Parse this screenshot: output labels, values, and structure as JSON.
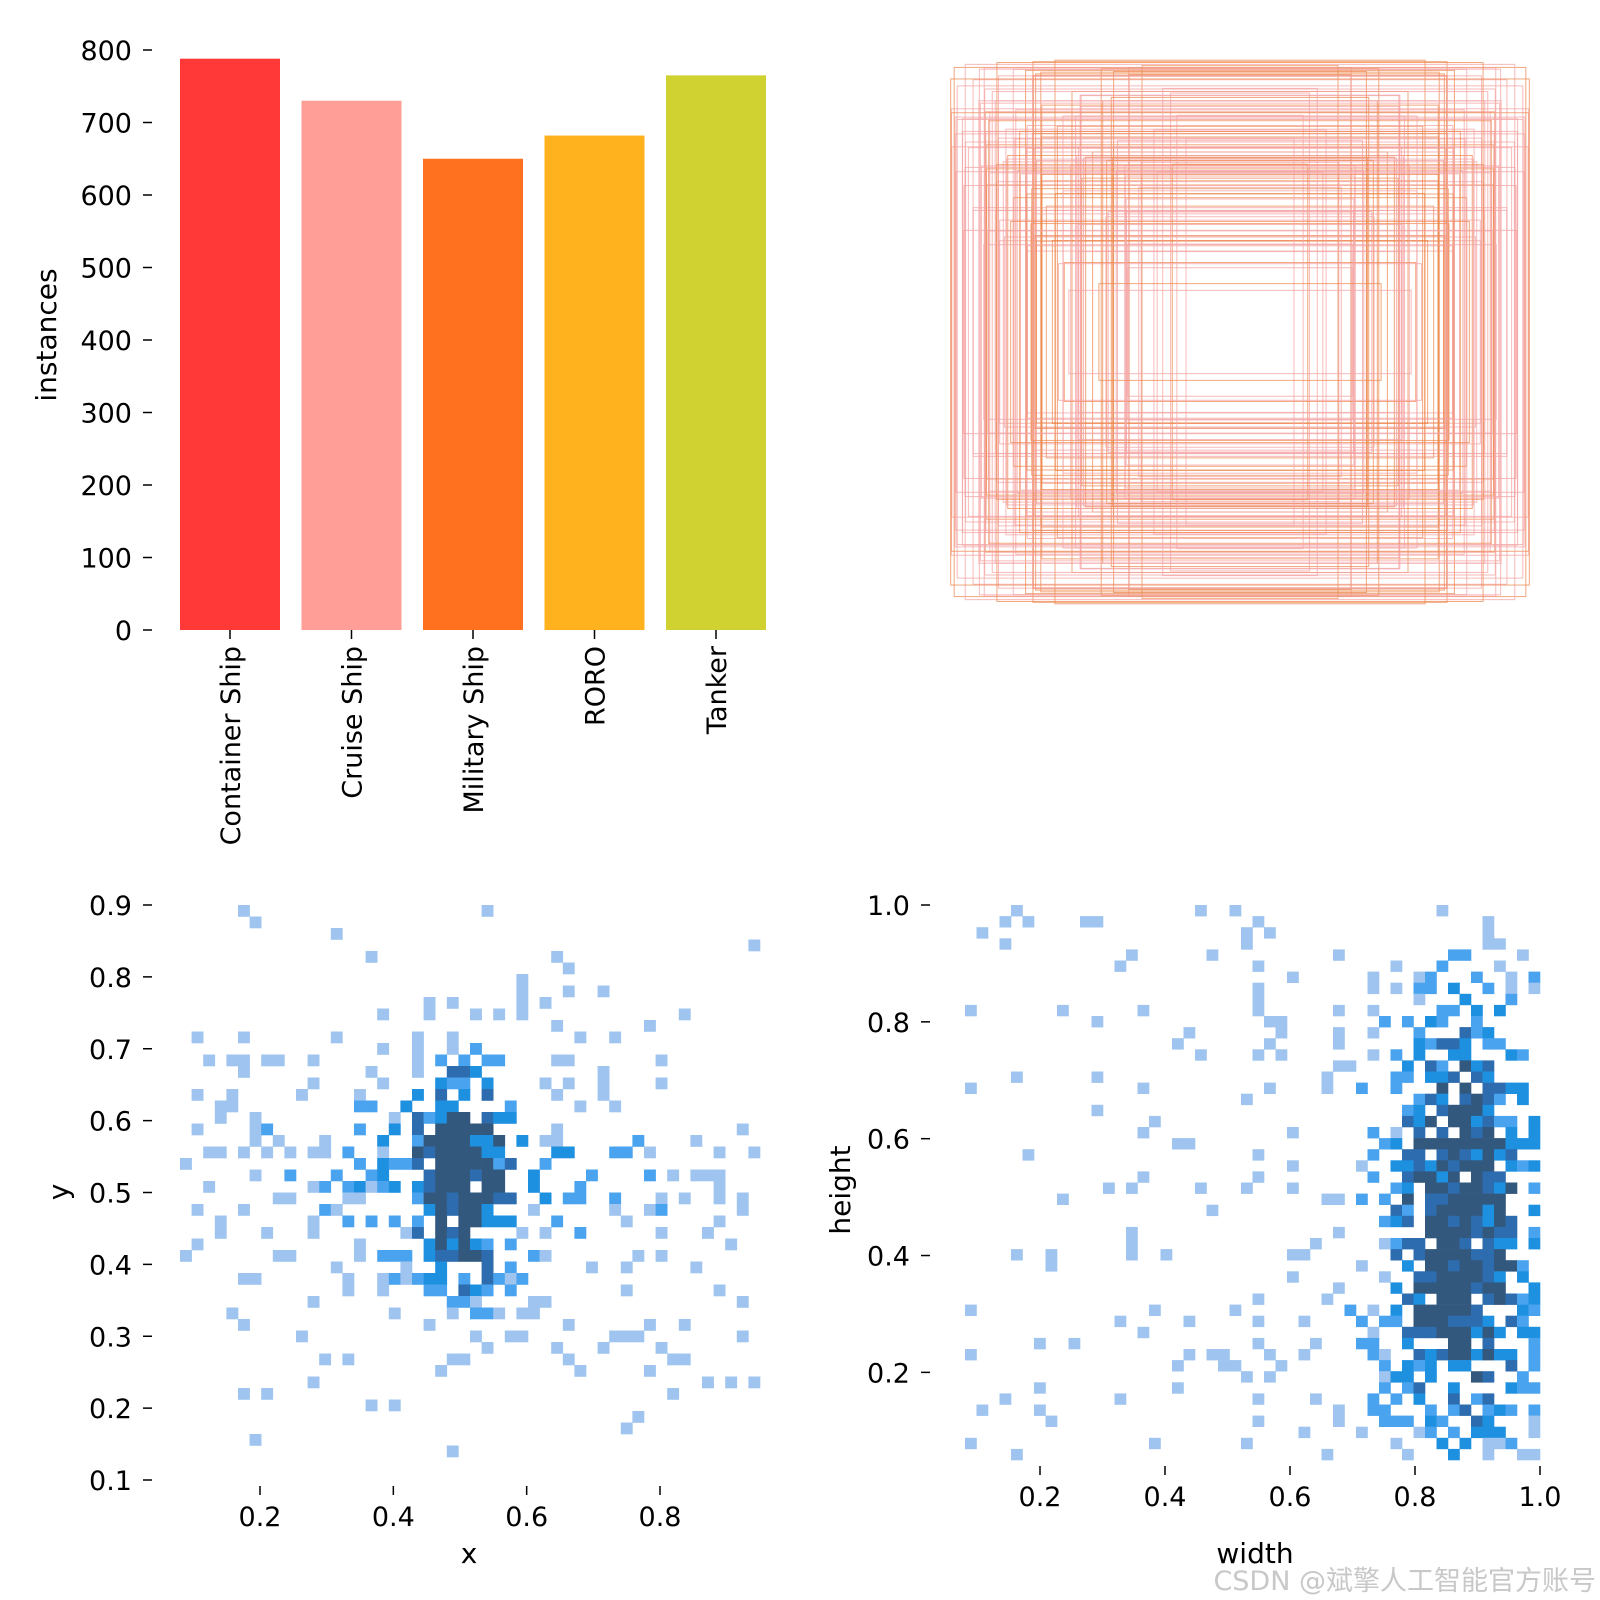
{
  "chart_data": [
    {
      "type": "bar",
      "panel": "top-left",
      "categories": [
        "Container Ship",
        "Cruise Ship",
        "Military Ship",
        "RORO",
        "Tanker"
      ],
      "values": [
        788,
        730,
        650,
        682,
        765
      ],
      "colors": [
        "#ff3838",
        "#ff9d97",
        "#ff701f",
        "#ffb21d",
        "#cfd231"
      ],
      "ylabel": "instances",
      "xlabel": "",
      "ylim": [
        0,
        800
      ],
      "yticks": [
        0,
        100,
        200,
        300,
        400,
        500,
        600,
        700,
        800
      ]
    },
    {
      "type": "overlay-rectangles",
      "panel": "top-right",
      "description": "centered bounding boxes of label widths/heights",
      "colors": [
        "#f4a3a3",
        "#ee8a50"
      ],
      "axes": "off"
    },
    {
      "type": "heatmap",
      "panel": "bottom-left",
      "xlabel": "x",
      "ylabel": "y",
      "xlim": [
        0.08,
        0.95
      ],
      "ylim": [
        0.1,
        0.9
      ],
      "xticks": [
        0.2,
        0.4,
        0.6,
        0.8
      ],
      "yticks": [
        0.1,
        0.2,
        0.3,
        0.4,
        0.5,
        0.6,
        0.7,
        0.8,
        0.9
      ],
      "center": [
        0.5,
        0.52
      ],
      "description": "2D histogram of box centers, dense near x=0.5, y=0.5"
    },
    {
      "type": "heatmap",
      "panel": "bottom-right",
      "xlabel": "width",
      "ylabel": "height",
      "xlim": [
        0.08,
        1.0
      ],
      "ylim": [
        0.05,
        1.0
      ],
      "xticks": [
        0.2,
        0.4,
        0.6,
        0.8,
        1.0
      ],
      "yticks": [
        0.2,
        0.4,
        0.6,
        0.8,
        1.0
      ],
      "center": [
        0.87,
        0.45
      ],
      "description": "2D histogram of box sizes, dense near width=0.85-0.95"
    }
  ],
  "watermark": "CSDN @斌擎人工智能官方账号"
}
